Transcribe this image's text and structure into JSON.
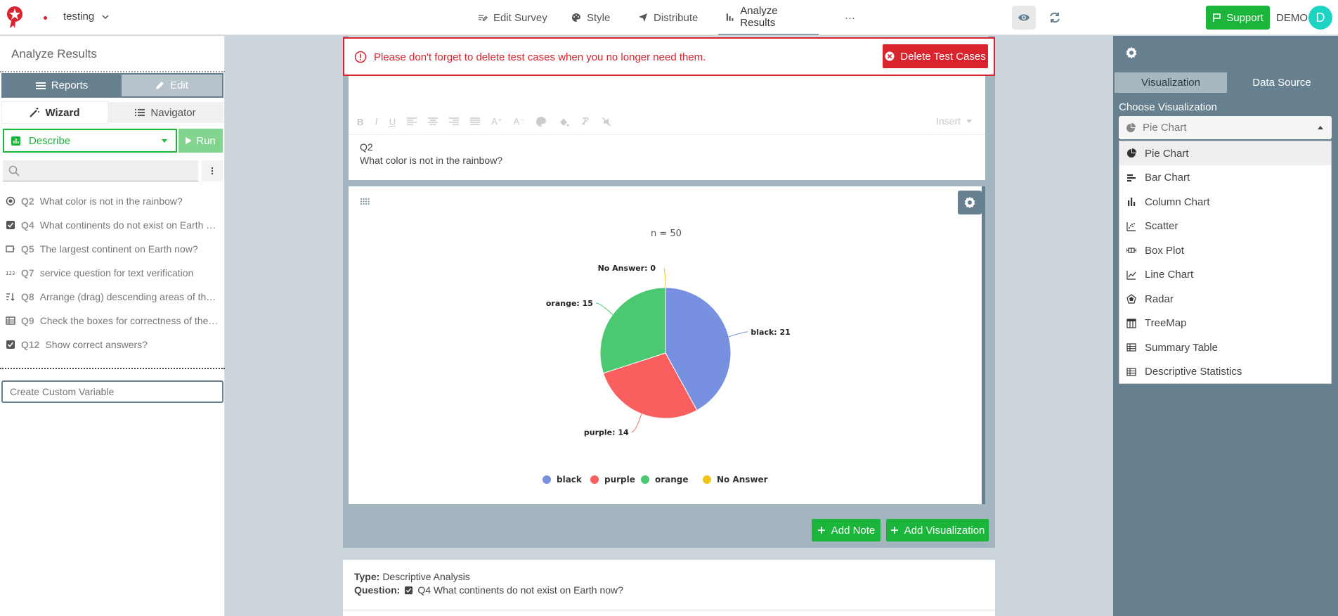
{
  "app": {
    "survey_name": "testing",
    "nav": {
      "edit_survey": "Edit Survey",
      "style": "Style",
      "distribute": "Distribute",
      "analyze": "Analyze Results",
      "more": "···"
    },
    "support_label": "Support",
    "user_label": "DEMO",
    "avatar_letter": "D"
  },
  "left_panel": {
    "title": "Analyze Results",
    "reports_label": "Reports",
    "edit_label": "Edit",
    "wizard_label": "Wizard",
    "navigator_label": "Navigator",
    "analysis_type": "Describe",
    "run_label": "Run",
    "search_placeholder": "",
    "questions": [
      {
        "num": "Q2",
        "text": "What color is not in the rainbow?",
        "icon": "radio-icon"
      },
      {
        "num": "Q4",
        "text": "What continents do not exist on Earth now?",
        "icon": "checkbox-icon"
      },
      {
        "num": "Q5",
        "text": "The largest continent on Earth now?",
        "icon": "dropdown-icon"
      },
      {
        "num": "Q7",
        "text": "service question for text verification",
        "icon": "numeric-icon"
      },
      {
        "num": "Q8",
        "text": "Arrange (drag) descending areas of the continents",
        "icon": "ranking-icon"
      },
      {
        "num": "Q9",
        "text": "Check the boxes for correctness of the statements",
        "icon": "matrix-icon"
      },
      {
        "num": "Q12",
        "text": "Show correct answers?",
        "icon": "checkbox-icon"
      }
    ],
    "custom_variable_placeholder": "Create Custom Variable"
  },
  "center": {
    "alert_text": "Please don't forget to delete test cases when you no longer need them.",
    "delete_label": "Delete Test Cases",
    "editor": {
      "insert_label": "Insert",
      "question_num": "Q2",
      "question_text": "What color is not in the rainbow?"
    },
    "add_note_label": "Add Note",
    "add_viz_label": "Add Visualization",
    "next_card": {
      "type_label": "Type:",
      "type_value": "Descriptive Analysis",
      "question_label": "Question:",
      "question_value": "Q4 What continents do not exist on Earth now?"
    }
  },
  "chart_data": {
    "type": "pie",
    "subtitle": "n = 50",
    "categories": [
      "black",
      "purple",
      "orange",
      "No Answer"
    ],
    "values": [
      21,
      14,
      15,
      0
    ],
    "colors": [
      "#7890e0",
      "#fa5f60",
      "#4bc971",
      "#f0c419"
    ],
    "legend": [
      "black",
      "purple",
      "orange",
      "No Answer"
    ],
    "legend_position": "bottom"
  },
  "right_panel": {
    "tab_visualization": "Visualization",
    "tab_data_source": "Data Source",
    "choose_label": "Choose Visualization",
    "selected": "Pie Chart",
    "options": [
      {
        "label": "Pie Chart",
        "icon": "pie-chart-icon"
      },
      {
        "label": "Bar Chart",
        "icon": "bar-chart-icon"
      },
      {
        "label": "Column Chart",
        "icon": "column-chart-icon"
      },
      {
        "label": "Scatter",
        "icon": "scatter-icon"
      },
      {
        "label": "Box Plot",
        "icon": "box-plot-icon"
      },
      {
        "label": "Line Chart",
        "icon": "line-chart-icon"
      },
      {
        "label": "Radar",
        "icon": "radar-icon"
      },
      {
        "label": "TreeMap",
        "icon": "treemap-icon"
      },
      {
        "label": "Summary Table",
        "icon": "table-icon"
      },
      {
        "label": "Descriptive Statistics",
        "icon": "table-icon"
      }
    ]
  }
}
